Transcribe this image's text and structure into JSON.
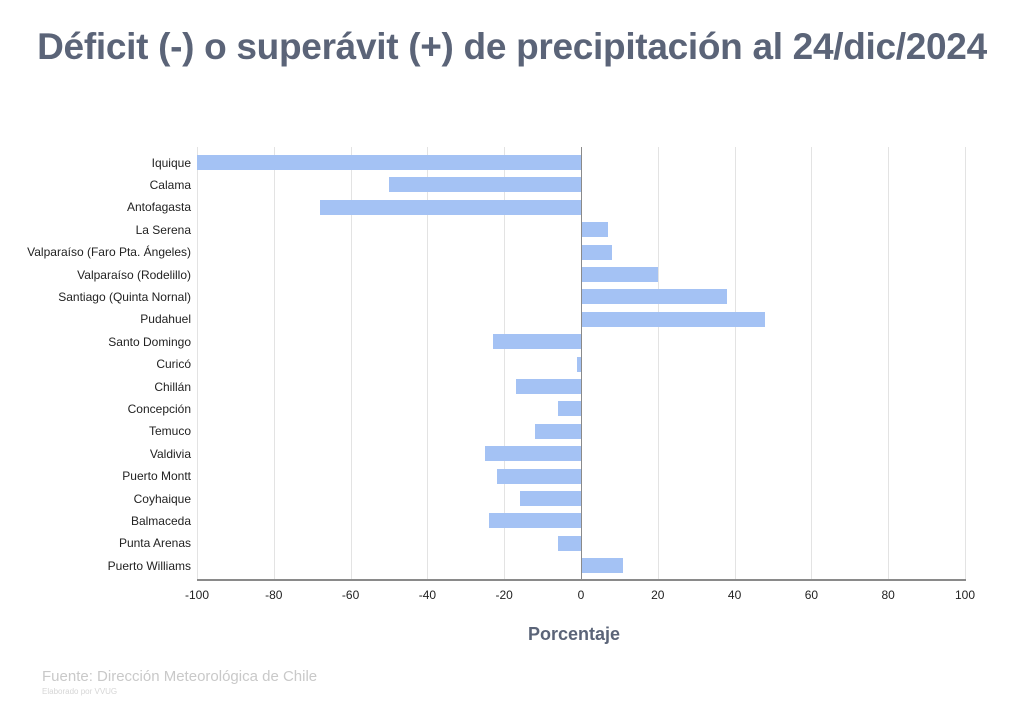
{
  "title": "Déficit (-) o superávit (+) de precipitación al 24/dic/2024",
  "xlabel": "Porcentaje",
  "source": "Fuente: Dirección Meteorológica de Chile",
  "credit": "Elaborado por VVUG",
  "colors": {
    "bar": "#a4c2f4",
    "title": "#5b6478"
  },
  "ticks": [
    "-100",
    "-80",
    "-60",
    "-40",
    "-20",
    "0",
    "20",
    "40",
    "60",
    "80",
    "100"
  ],
  "chart_data": {
    "type": "bar",
    "orientation": "horizontal",
    "title": "Déficit (-) o superávit (+) de precipitación al 24/dic/2024",
    "xlabel": "Porcentaje",
    "ylabel": "",
    "xlim": [
      -100,
      100
    ],
    "grid": true,
    "legend": "none",
    "categories": [
      "Iquique",
      "Calama",
      "Antofagasta",
      "La Serena",
      "Valparaíso (Faro Pta. Ángeles)",
      "Valparaíso (Rodelillo)",
      "Santiago (Quinta Nornal)",
      "Pudahuel",
      "Santo Domingo",
      "Curicó",
      "Chillán",
      "Concepción",
      "Temuco",
      "Valdivia",
      "Puerto Montt",
      "Coyhaique",
      "Balmaceda",
      "Punta Arenas",
      "Puerto Williams"
    ],
    "values": [
      -100,
      -50,
      -68,
      7,
      8,
      20,
      38,
      48,
      -23,
      -1,
      -17,
      -6,
      -12,
      -25,
      -22,
      -16,
      -24,
      -6,
      11
    ]
  }
}
